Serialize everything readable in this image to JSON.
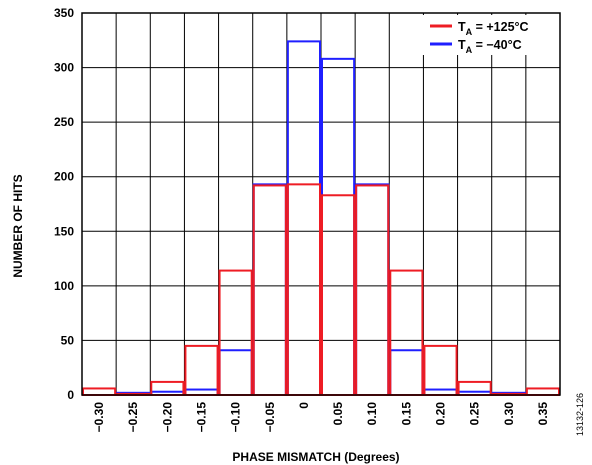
{
  "chart_data": {
    "type": "bar",
    "title": "",
    "xlabel": "PHASE MISMATCH (Degrees)",
    "ylabel": "NUMBER OF HITS",
    "categories": [
      "−0.30",
      "−0.25",
      "−0.20",
      "−0.15",
      "−0.10",
      "−0.05",
      "0",
      "0.05",
      "0.10",
      "0.15",
      "0.20",
      "0.25",
      "0.30",
      "0.35"
    ],
    "yticks": [
      "0",
      "50",
      "100",
      "150",
      "200",
      "250",
      "300",
      "350"
    ],
    "ylim": [
      0,
      350
    ],
    "grid": true,
    "legend_position": "top-right",
    "series": [
      {
        "name": "T_A = +125°C",
        "legend_main": "T",
        "legend_sub": "A",
        "legend_rest": " = +125°C",
        "color": "#ee1c24",
        "values": [
          6,
          1,
          12,
          45,
          114,
          192,
          193,
          183,
          192,
          114,
          45,
          12,
          1,
          6
        ]
      },
      {
        "name": "T_A = −40°C",
        "legend_main": "T",
        "legend_sub": "A",
        "legend_rest": " = −40°C",
        "color": "#1f1fff",
        "values": [
          0,
          2,
          3,
          5,
          41,
          193,
          324,
          308,
          193,
          41,
          5,
          3,
          2,
          0
        ]
      }
    ]
  },
  "figure_id": "13132-126"
}
